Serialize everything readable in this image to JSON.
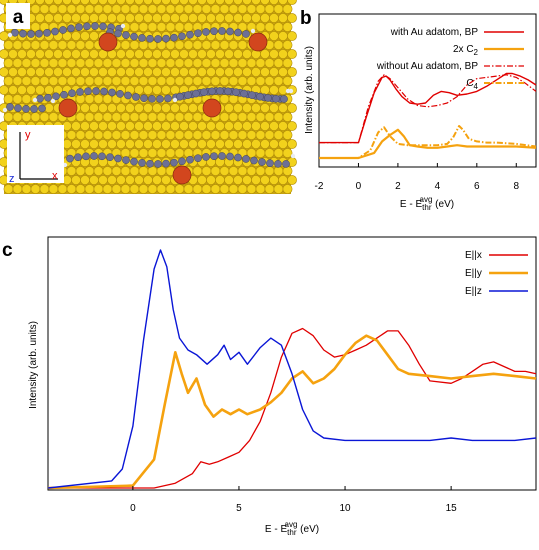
{
  "panel_a": {
    "letter": "a",
    "axis_labels": {
      "y": "y",
      "z": "z",
      "x": "x"
    },
    "colors": {
      "background": "#c7a30e",
      "gold_atom": "#f2d21c",
      "carbon": "#6c7096",
      "hydrogen": "#e8ecf4",
      "adatom": "#d2461e"
    }
  },
  "chart_data": [
    {
      "panel": "b",
      "type": "line",
      "xlabel": "E - E",
      "xlabel_sub": "thr",
      "xlabel_sup": "avg",
      "xlabel_unit": " (eV)",
      "ylabel": "Intensity (arb. units)",
      "xlim": [
        -2,
        9
      ],
      "xticks": [
        -2,
        0,
        2,
        4,
        6,
        8
      ],
      "ylim": [
        0,
        10
      ],
      "series": [
        {
          "name": "with Au adatom, BP",
          "color": "#e00000",
          "style": "solid",
          "width": 1.4,
          "x": [
            -2,
            0,
            0.4,
            0.8,
            1.2,
            1.4,
            1.6,
            1.9,
            2.2,
            2.6,
            3.0,
            3.4,
            3.8,
            4.2,
            4.6,
            5.0,
            5.5,
            6.0,
            6.5,
            7.0,
            7.5,
            7.8,
            8.2,
            8.6,
            9.0
          ],
          "y": [
            1.2,
            1.2,
            3.2,
            5.1,
            6.3,
            6.4,
            6.1,
            5.4,
            4.8,
            4.3,
            4.2,
            4.3,
            4.9,
            5.2,
            5.1,
            4.9,
            5.0,
            5.2,
            5.6,
            6.1,
            6.6,
            6.6,
            6.4,
            6.1,
            5.7
          ]
        },
        {
          "name": "2x C",
          "name_sub": "2",
          "color": "#f5a20f",
          "style": "solid",
          "width": 2.2,
          "x": [
            -2,
            0,
            0.8,
            1.2,
            1.6,
            2.0,
            2.3,
            2.6,
            3.0,
            3.5,
            4.0,
            4.5,
            5.0,
            5.5,
            6.0,
            7.0,
            8.0,
            9.0
          ],
          "y": [
            0,
            0,
            0.4,
            1.3,
            1.8,
            2.2,
            1.7,
            1.0,
            0.9,
            0.8,
            0.8,
            0.9,
            1.0,
            0.9,
            0.9,
            0.9,
            0.9,
            0.8
          ]
        },
        {
          "name": "without Au adatom, BP",
          "color": "#e00000",
          "style": "dashdot",
          "width": 1.2,
          "x": [
            -2,
            0,
            0.5,
            1.0,
            1.3,
            1.6,
            2.0,
            2.5,
            3.0,
            3.5,
            4.0,
            4.5,
            5.0,
            5.5,
            6.0,
            6.5,
            7.0,
            7.5,
            8.0,
            8.5,
            9.0
          ],
          "y": [
            1.2,
            1.2,
            4.0,
            6.0,
            6.5,
            6.2,
            5.5,
            4.6,
            4.1,
            4.0,
            4.1,
            4.3,
            4.8,
            5.7,
            6.2,
            6.3,
            6.4,
            6.5,
            6.3,
            5.8,
            5.2
          ]
        },
        {
          "name": "C",
          "name_sub": "4",
          "color": "#f5a20f",
          "style": "dashdot",
          "width": 2.0,
          "x": [
            -2,
            0,
            0.6,
            1.0,
            1.3,
            1.6,
            2.0,
            2.5,
            3.0,
            3.5,
            4.0,
            4.5,
            4.8,
            5.1,
            5.3,
            5.6,
            6.0,
            6.5,
            7.0,
            8.0,
            9.0
          ],
          "y": [
            0,
            0,
            0.6,
            2.0,
            2.4,
            1.7,
            1.1,
            1.0,
            1.0,
            1.0,
            1.0,
            1.1,
            1.6,
            2.5,
            2.2,
            1.5,
            1.3,
            1.2,
            1.2,
            1.1,
            0.9
          ]
        }
      ]
    },
    {
      "panel": "c",
      "type": "line",
      "xlabel": "E - E",
      "xlabel_sub": "thr",
      "xlabel_sup": "avg",
      "xlabel_unit": " (eV)",
      "ylabel": "Intensity (arb. units)",
      "xlim": [
        -4,
        19
      ],
      "xticks": [
        0,
        5,
        10,
        15
      ],
      "ylim": [
        0,
        10
      ],
      "series": [
        {
          "name": "E||x",
          "color": "#e00000",
          "width": 1.3,
          "x": [
            -4,
            1,
            2,
            2.8,
            3.2,
            3.6,
            4.0,
            4.5,
            5.0,
            5.5,
            6.0,
            6.5,
            7.0,
            7.5,
            8.0,
            8.5,
            9.0,
            9.5,
            10.0,
            10.5,
            11.0,
            11.5,
            12.0,
            12.5,
            13.0,
            13.5,
            14.0,
            15.0,
            15.5,
            16.0,
            16.5,
            17.0,
            17.5,
            18.0,
            18.5,
            19.0
          ],
          "y": [
            0,
            0,
            0.2,
            0.6,
            1.1,
            1.0,
            1.1,
            1.3,
            1.5,
            2.0,
            2.8,
            4.0,
            5.5,
            6.5,
            6.7,
            6.4,
            5.8,
            5.5,
            5.6,
            5.8,
            6.0,
            6.3,
            6.6,
            6.6,
            6.0,
            5.2,
            4.5,
            4.4,
            4.6,
            4.9,
            5.2,
            5.3,
            5.1,
            4.9,
            4.9,
            4.8
          ]
        },
        {
          "name": "E||y",
          "color": "#f5a20f",
          "width": 2.6,
          "x": [
            -4,
            0,
            1,
            1.5,
            2.0,
            2.3,
            2.6,
            3.0,
            3.4,
            3.8,
            4.2,
            4.6,
            5.0,
            5.4,
            6.0,
            6.5,
            7.0,
            7.5,
            8.0,
            8.5,
            9.0,
            9.5,
            10.0,
            10.5,
            11.0,
            11.5,
            12.0,
            12.5,
            13.0,
            14.0,
            15.0,
            16.0,
            17.0,
            18.0,
            19.0
          ],
          "y": [
            0,
            0.1,
            1.2,
            3.5,
            5.7,
            4.8,
            4.0,
            4.6,
            3.5,
            3.0,
            3.3,
            3.1,
            3.3,
            3.1,
            3.3,
            3.6,
            4.0,
            4.6,
            4.9,
            4.4,
            4.6,
            5.0,
            5.6,
            6.1,
            6.4,
            6.2,
            5.6,
            5.0,
            4.8,
            4.7,
            4.6,
            4.7,
            4.8,
            4.7,
            4.6
          ]
        },
        {
          "name": "E||z",
          "color": "#0a16d6",
          "width": 1.4,
          "x": [
            -4,
            -1,
            -0.5,
            0,
            0.5,
            1.0,
            1.3,
            1.6,
            1.9,
            2.2,
            2.6,
            3.0,
            3.5,
            4.0,
            4.3,
            4.6,
            5.0,
            5.4,
            6.0,
            6.5,
            7.0,
            7.5,
            8.0,
            8.5,
            9.0,
            10.0,
            11.0,
            12.0,
            13.0,
            14.0,
            15.0,
            16.0,
            17.0,
            18.0,
            19.0
          ],
          "y": [
            0,
            0.3,
            0.8,
            2.6,
            6.2,
            9.2,
            10.0,
            9.3,
            7.5,
            6.3,
            5.8,
            5.6,
            5.2,
            5.6,
            6.0,
            5.4,
            5.7,
            5.2,
            5.9,
            6.3,
            6.0,
            4.8,
            3.3,
            2.4,
            2.1,
            2.0,
            2.0,
            2.0,
            2.0,
            2.0,
            2.1,
            2.0,
            2.0,
            2.0,
            2.1
          ]
        }
      ]
    }
  ]
}
